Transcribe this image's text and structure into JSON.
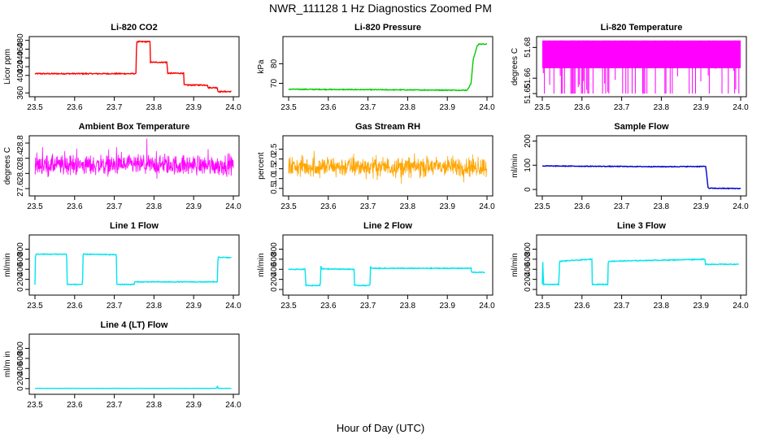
{
  "figure": {
    "title": "NWR_111128  1 Hz Diagnostics Zoomed PM",
    "xlabel": "Hour of Day (UTC)"
  },
  "chart_data": [
    {
      "type": "line",
      "title": "Li-820 CO2",
      "ylabel": "Licor ppm",
      "color": "#ff0000",
      "xlim": [
        23.5,
        24.0
      ],
      "ylim": [
        355,
        485
      ],
      "xticks": [
        "23.5",
        "23.6",
        "23.7",
        "23.8",
        "23.9",
        "24.0"
      ],
      "yticks": [
        360,
        400,
        420,
        440,
        460,
        480
      ],
      "yticklabels": [
        "360",
        "400",
        "420",
        "440",
        "460",
        "480"
      ],
      "noise": 1.2,
      "series": [
        {
          "x": [
            23.5,
            23.755,
            23.756,
            23.79,
            23.791,
            23.833,
            23.834,
            23.875,
            23.876,
            23.935,
            23.936,
            23.96,
            23.961,
            23.995
          ],
          "y": [
            404,
            404,
            477,
            477,
            430,
            430,
            405,
            405,
            378,
            378,
            372,
            372,
            363,
            363
          ]
        }
      ]
    },
    {
      "type": "line",
      "title": "Li-820 Pressure",
      "ylabel": "kPa",
      "color": "#00cc00",
      "xlim": [
        23.5,
        24.0
      ],
      "ylim": [
        64,
        93
      ],
      "xticks": [
        "23.5",
        "23.6",
        "23.7",
        "23.8",
        "23.9",
        "24.0"
      ],
      "yticks": [
        70,
        80
      ],
      "yticklabels": [
        "70",
        "80"
      ],
      "noise": 0.2,
      "series": [
        {
          "x": [
            23.5,
            23.95,
            23.96,
            23.965,
            23.975,
            23.98,
            24.0
          ],
          "y": [
            67,
            66.5,
            70,
            82,
            89,
            90,
            90
          ]
        }
      ]
    },
    {
      "type": "line",
      "title": "Li-820 Temperature",
      "ylabel": "degrees C",
      "color": "#ff00ff",
      "style": "spikes",
      "xlim": [
        23.5,
        24.0
      ],
      "ylim": [
        51.649,
        51.686
      ],
      "xticks": [
        "23.5",
        "23.6",
        "23.7",
        "23.8",
        "23.9",
        "24.0"
      ],
      "yticks": [
        51.65,
        51.66,
        51.68
      ],
      "yticklabels": [
        "51.65",
        "51.66",
        "51.68"
      ],
      "top_value": 51.6845,
      "bottom_value": 51.65,
      "base_value": 51.6665,
      "series": [
        {
          "x": [
            23.5,
            24.0
          ],
          "y": [
            51.6845,
            51.6845
          ]
        }
      ]
    },
    {
      "type": "line",
      "title": "Ambient Box Temperature",
      "ylabel": "degrees C",
      "color": "#ff00ff",
      "style": "noise",
      "xlim": [
        23.5,
        24.0
      ],
      "ylim": [
        27.45,
        28.95
      ],
      "xticks": [
        "23.5",
        "23.6",
        "23.7",
        "23.8",
        "23.9",
        "24.0"
      ],
      "yticks": [
        27.6,
        28.0,
        28.4,
        28.8
      ],
      "yticklabels": [
        "27.6",
        "28.0",
        "28.4",
        "28.8"
      ],
      "mean": 28.22,
      "spread": 0.38,
      "series": [
        {
          "x": [
            23.5,
            24.0
          ],
          "y": [
            28.22,
            28.22
          ]
        }
      ]
    },
    {
      "type": "line",
      "title": "Gas Stream RH",
      "ylabel": "percent",
      "color": "#ffa500",
      "style": "noise",
      "xlim": [
        23.5,
        24.0
      ],
      "ylim": [
        0.2,
        3.1
      ],
      "xticks": [
        "23.5",
        "23.6",
        "23.7",
        "23.8",
        "23.9",
        "24.0"
      ],
      "yticks": [
        0.5,
        1.0,
        1.5,
        2.0,
        2.5
      ],
      "yticklabels": [
        "0.5",
        "1.0",
        "1.5",
        "2.0",
        "2.5"
      ],
      "mean": 1.6,
      "spread": 0.75,
      "series": [
        {
          "x": [
            23.5,
            24.0
          ],
          "y": [
            1.6,
            1.6
          ]
        }
      ]
    },
    {
      "type": "line",
      "title": "Sample Flow",
      "ylabel": "ml/min",
      "color": "#0000cc",
      "xlim": [
        23.5,
        24.0
      ],
      "ylim": [
        -20,
        215
      ],
      "xticks": [
        "23.5",
        "23.6",
        "23.7",
        "23.8",
        "23.9",
        "24.0"
      ],
      "yticks": [
        0,
        100,
        200
      ],
      "yticklabels": [
        "0",
        "100",
        "200"
      ],
      "noise": 1.5,
      "series": [
        {
          "x": [
            23.5,
            23.8,
            23.912,
            23.918,
            24.0
          ],
          "y": [
            97,
            94,
            95,
            5,
            4
          ]
        }
      ]
    },
    {
      "type": "line",
      "title": "Line 1 Flow",
      "ylabel": "ml/min",
      "color": "#00e5ee",
      "xlim": [
        23.5,
        24.0
      ],
      "ylim": [
        -80,
        1050
      ],
      "xticks": [
        "23.5",
        "23.6",
        "23.7",
        "23.8",
        "23.9",
        "24.0"
      ],
      "yticks": [
        0,
        200,
        400,
        600,
        800
      ],
      "yticklabels": [
        "0",
        "200",
        "400",
        "600",
        "800"
      ],
      "noise": 8,
      "series": [
        {
          "x": [
            23.5,
            23.501,
            23.503,
            23.58,
            23.581,
            23.62,
            23.621,
            23.622,
            23.705,
            23.706,
            23.75,
            23.751,
            23.96,
            23.961,
            23.962,
            23.995
          ],
          "y": [
            100,
            640,
            700,
            700,
            100,
            100,
            640,
            700,
            690,
            100,
            100,
            150,
            150,
            600,
            640,
            630
          ]
        }
      ]
    },
    {
      "type": "line",
      "title": "Line 2 Flow",
      "ylabel": "ml/min",
      "color": "#00e5ee",
      "xlim": [
        23.5,
        24.0
      ],
      "ylim": [
        -80,
        1050
      ],
      "xticks": [
        "23.5",
        "23.6",
        "23.7",
        "23.8",
        "23.9",
        "24.0"
      ],
      "yticks": [
        0,
        200,
        400,
        600,
        800
      ],
      "yticklabels": [
        "0",
        "200",
        "400",
        "600",
        "800"
      ],
      "noise": 8,
      "series": [
        {
          "x": [
            23.5,
            23.542,
            23.543,
            23.58,
            23.581,
            23.583,
            23.665,
            23.666,
            23.705,
            23.706,
            23.708,
            23.96,
            23.961,
            23.995
          ],
          "y": [
            400,
            400,
            80,
            80,
            480,
            410,
            400,
            80,
            80,
            460,
            420,
            420,
            340,
            340
          ]
        }
      ]
    },
    {
      "type": "line",
      "title": "Line 3 Flow",
      "ylabel": "ml/min",
      "color": "#00e5ee",
      "xlim": [
        23.5,
        24.0
      ],
      "ylim": [
        -80,
        1050
      ],
      "xticks": [
        "23.5",
        "23.6",
        "23.7",
        "23.8",
        "23.9",
        "24.0"
      ],
      "yticks": [
        0,
        200,
        400,
        600,
        800
      ],
      "yticklabels": [
        "0",
        "200",
        "400",
        "600",
        "800"
      ],
      "noise": 8,
      "series": [
        {
          "x": [
            23.5,
            23.501,
            23.503,
            23.542,
            23.543,
            23.545,
            23.625,
            23.626,
            23.665,
            23.666,
            23.668,
            23.91,
            23.911,
            23.995
          ],
          "y": [
            100,
            580,
            100,
            100,
            520,
            560,
            600,
            100,
            100,
            520,
            560,
            600,
            500,
            500
          ]
        }
      ]
    },
    {
      "type": "line",
      "title": "Line 4 (LT) Flow",
      "ylabel": "ml/m in",
      "color": "#00e5ee",
      "xlim": [
        23.5,
        24.0
      ],
      "ylim": [
        -80,
        1050
      ],
      "xticks": [
        "23.5",
        "23.6",
        "23.7",
        "23.8",
        "23.9",
        "24.0"
      ],
      "yticks": [
        0,
        200,
        400,
        600,
        800
      ],
      "yticklabels": [
        "0",
        "200",
        "400",
        "600",
        "800"
      ],
      "noise": 2,
      "series": [
        {
          "x": [
            23.5,
            23.958,
            23.96,
            23.962,
            23.995
          ],
          "y": [
            5,
            5,
            55,
            5,
            5
          ]
        }
      ]
    }
  ]
}
